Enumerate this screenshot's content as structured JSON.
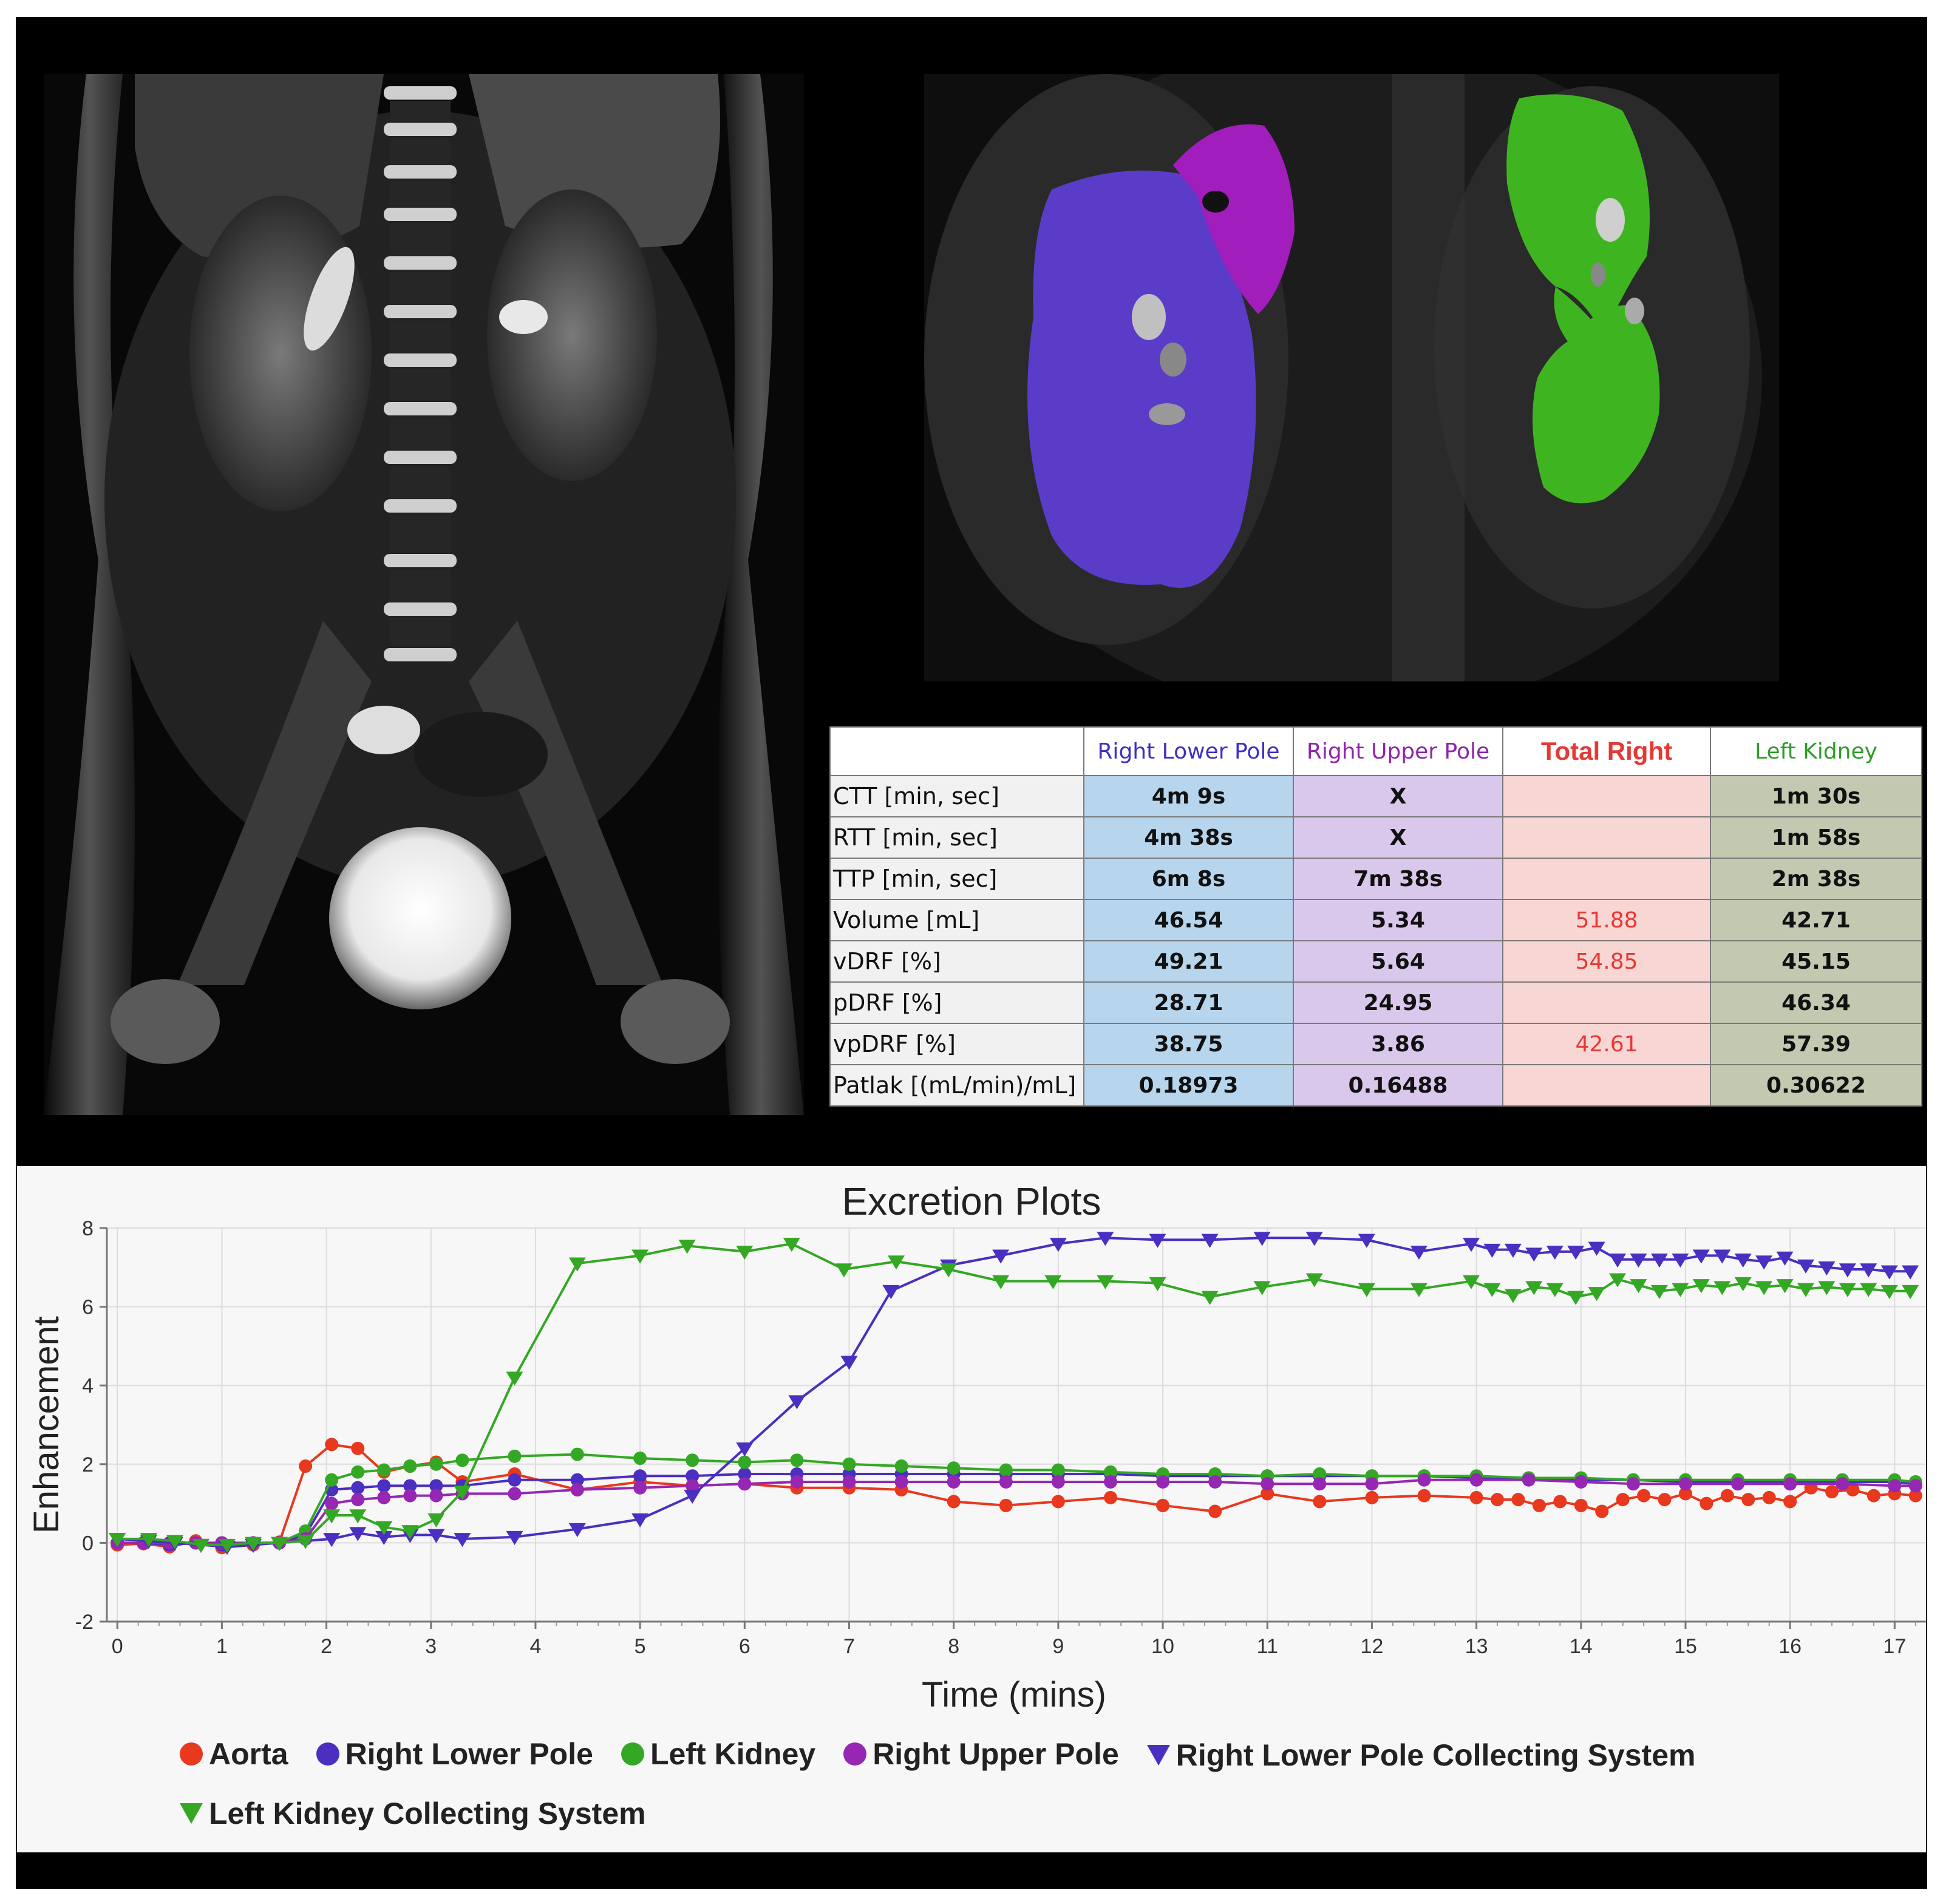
{
  "images": {
    "coronal": {
      "name": "coronal-mri-image"
    },
    "axial": {
      "name": "segmented-kidney-mri-image"
    }
  },
  "table": {
    "headers": [
      "",
      "Right Lower Pole",
      "Right Upper Pole",
      "Total Right",
      "Left Kidney"
    ],
    "header_colors": [
      "#000000",
      "#3c2fc4",
      "#8e24aa",
      "#e53935",
      "#2e9d28"
    ],
    "rows": [
      {
        "label": "CTT [min, sec]",
        "values": [
          "4m 9s",
          "X",
          "",
          "1m 30s"
        ]
      },
      {
        "label": "RTT [min, sec]",
        "values": [
          "4m 38s",
          "X",
          "",
          "1m 58s"
        ]
      },
      {
        "label": "TTP [min, sec]",
        "values": [
          "6m 8s",
          "7m 38s",
          "",
          "2m 38s"
        ]
      },
      {
        "label": "Volume [mL]",
        "values": [
          "46.54",
          "5.34",
          "51.88",
          "42.71"
        ]
      },
      {
        "label": "vDRF [%]",
        "values": [
          "49.21",
          "5.64",
          "54.85",
          "45.15"
        ]
      },
      {
        "label": "pDRF [%]",
        "values": [
          "28.71",
          "24.95",
          "",
          "46.34"
        ]
      },
      {
        "label": "vpDRF [%]",
        "values": [
          "38.75",
          "3.86",
          "42.61",
          "57.39"
        ]
      },
      {
        "label": "Patlak [(mL/min)/mL]",
        "values": [
          "0.18973",
          "0.16488",
          "",
          "0.30622"
        ]
      }
    ]
  },
  "chart_data": {
    "type": "line",
    "title": "Excretion Plots",
    "xlabel": "Time (mins)",
    "ylabel": "Enhancement",
    "xlim": [
      -0.1,
      17.3
    ],
    "ylim": [
      -2,
      8
    ],
    "xticks": [
      0,
      1,
      2,
      3,
      4,
      5,
      6,
      7,
      8,
      9,
      10,
      11,
      12,
      13,
      14,
      15,
      16,
      17
    ],
    "yticks": [
      -2,
      0,
      2,
      4,
      6,
      8
    ],
    "grid": true,
    "legend_position": "bottom",
    "series": [
      {
        "name": "Aorta",
        "marker": "circle",
        "color": "#e8381e",
        "x": [
          0,
          0.25,
          0.5,
          0.75,
          1,
          1.3,
          1.55,
          1.8,
          2.05,
          2.3,
          2.55,
          2.8,
          3.05,
          3.3,
          3.8,
          4.4,
          5,
          5.5,
          6,
          6.5,
          7,
          7.5,
          8,
          8.5,
          9,
          9.5,
          10,
          10.5,
          11,
          11.5,
          12,
          12.5,
          13,
          13.2,
          13.4,
          13.6,
          13.8,
          14,
          14.2,
          14.4,
          14.6,
          14.8,
          15,
          15.2,
          15.4,
          15.6,
          15.8,
          16,
          16.2,
          16.4,
          16.6,
          16.8,
          17,
          17.2
        ],
        "y": [
          -0.05,
          -0.02,
          -0.1,
          0.05,
          -0.12,
          -0.05,
          0.02,
          1.95,
          2.5,
          2.4,
          1.8,
          1.95,
          2.05,
          1.55,
          1.75,
          1.35,
          1.55,
          1.45,
          1.5,
          1.4,
          1.4,
          1.35,
          1.05,
          0.95,
          1.05,
          1.15,
          0.95,
          0.8,
          1.25,
          1.05,
          1.15,
          1.2,
          1.15,
          1.1,
          1.1,
          0.95,
          1.05,
          0.95,
          0.8,
          1.1,
          1.2,
          1.1,
          1.25,
          1.0,
          1.2,
          1.1,
          1.15,
          1.05,
          1.4,
          1.3,
          1.35,
          1.2,
          1.25,
          1.2
        ]
      },
      {
        "name": "Right Lower Pole",
        "marker": "circle",
        "color": "#4a2fc0",
        "x": [
          0,
          0.25,
          0.5,
          0.75,
          1,
          1.3,
          1.55,
          1.8,
          2.05,
          2.3,
          2.55,
          2.8,
          3.05,
          3.3,
          3.8,
          4.4,
          5,
          5.5,
          6,
          6.5,
          7,
          7.5,
          8,
          8.5,
          9,
          9.5,
          10,
          10.5,
          11,
          11.5,
          12,
          12.5,
          13,
          13.5,
          14,
          14.5,
          15,
          15.5,
          16,
          16.5,
          17,
          17.2
        ],
        "y": [
          0,
          0,
          -0.05,
          0,
          -0.05,
          0,
          0,
          0.2,
          1.35,
          1.4,
          1.45,
          1.45,
          1.45,
          1.45,
          1.6,
          1.6,
          1.7,
          1.7,
          1.75,
          1.75,
          1.75,
          1.75,
          1.75,
          1.75,
          1.75,
          1.75,
          1.7,
          1.7,
          1.7,
          1.7,
          1.7,
          1.7,
          1.65,
          1.65,
          1.6,
          1.6,
          1.55,
          1.55,
          1.55,
          1.55,
          1.55,
          1.5
        ]
      },
      {
        "name": "Left Kidney",
        "marker": "circle",
        "color": "#34a824",
        "x": [
          0,
          0.25,
          0.5,
          0.75,
          1,
          1.3,
          1.55,
          1.8,
          2.05,
          2.3,
          2.55,
          2.8,
          3.05,
          3.3,
          3.8,
          4.4,
          5,
          5.5,
          6,
          6.5,
          7,
          7.5,
          8,
          8.5,
          9,
          9.5,
          10,
          10.5,
          11,
          11.5,
          12,
          12.5,
          13,
          13.5,
          14,
          14.5,
          15,
          15.5,
          16,
          16.5,
          17,
          17.2
        ],
        "y": [
          0,
          0,
          0,
          0,
          0,
          0,
          0,
          0.3,
          1.6,
          1.8,
          1.85,
          1.95,
          2.0,
          2.1,
          2.2,
          2.25,
          2.15,
          2.1,
          2.05,
          2.1,
          2.0,
          1.95,
          1.9,
          1.85,
          1.85,
          1.8,
          1.75,
          1.75,
          1.7,
          1.75,
          1.7,
          1.7,
          1.7,
          1.65,
          1.65,
          1.6,
          1.6,
          1.6,
          1.6,
          1.6,
          1.6,
          1.55
        ]
      },
      {
        "name": "Right Upper Pole",
        "marker": "circle",
        "color": "#9627b3",
        "x": [
          0,
          0.25,
          0.5,
          0.75,
          1,
          1.3,
          1.55,
          1.8,
          2.05,
          2.3,
          2.55,
          2.8,
          3.05,
          3.3,
          3.8,
          4.4,
          5,
          5.5,
          6,
          6.5,
          7,
          7.5,
          8,
          8.5,
          9,
          9.5,
          10,
          10.5,
          11,
          11.5,
          12,
          12.5,
          13,
          13.5,
          14,
          14.5,
          15,
          15.5,
          16,
          16.5,
          17,
          17.2
        ],
        "y": [
          0,
          0,
          0,
          0,
          0,
          0,
          0,
          0.1,
          1.0,
          1.1,
          1.15,
          1.2,
          1.2,
          1.25,
          1.25,
          1.35,
          1.4,
          1.45,
          1.5,
          1.55,
          1.55,
          1.55,
          1.55,
          1.55,
          1.55,
          1.55,
          1.55,
          1.55,
          1.5,
          1.5,
          1.5,
          1.6,
          1.6,
          1.6,
          1.55,
          1.5,
          1.5,
          1.5,
          1.5,
          1.5,
          1.45,
          1.45
        ]
      },
      {
        "name": "Right Lower Pole Collecting System",
        "marker": "triangle-down",
        "color": "#4a2fc0",
        "x": [
          0,
          0.3,
          0.55,
          0.8,
          1.05,
          1.3,
          1.55,
          2.05,
          2.3,
          2.55,
          2.8,
          3.05,
          3.3,
          3.8,
          4.4,
          5,
          5.5,
          6,
          6.5,
          7,
          7.4,
          7.95,
          8.45,
          9,
          9.45,
          9.95,
          10.45,
          10.95,
          11.45,
          11.95,
          12.45,
          12.95,
          13.15,
          13.35,
          13.55,
          13.75,
          13.95,
          14.15,
          14.35,
          14.55,
          14.75,
          14.95,
          15.15,
          15.35,
          15.55,
          15.75,
          15.95,
          16.15,
          16.35,
          16.55,
          16.75,
          16.95,
          17.15
        ],
        "y": [
          0.1,
          0.05,
          0.0,
          -0.05,
          -0.1,
          -0.05,
          0.0,
          0.1,
          0.25,
          0.15,
          0.2,
          0.2,
          0.1,
          0.15,
          0.35,
          0.6,
          1.2,
          2.4,
          3.6,
          4.6,
          6.4,
          7.05,
          7.3,
          7.6,
          7.75,
          7.7,
          7.7,
          7.75,
          7.75,
          7.7,
          7.4,
          7.6,
          7.45,
          7.45,
          7.35,
          7.4,
          7.4,
          7.5,
          7.2,
          7.2,
          7.2,
          7.2,
          7.3,
          7.3,
          7.2,
          7.15,
          7.25,
          7.05,
          7.0,
          6.95,
          6.95,
          6.9,
          6.9
        ]
      },
      {
        "name": "Left Kidney Collecting System",
        "marker": "triangle-down",
        "color": "#34a824",
        "x": [
          0,
          0.3,
          0.55,
          0.8,
          1.05,
          1.3,
          1.55,
          1.8,
          2.05,
          2.3,
          2.55,
          2.8,
          3.05,
          3.3,
          3.8,
          4.4,
          5,
          5.45,
          6,
          6.45,
          6.95,
          7.45,
          7.95,
          8.45,
          8.95,
          9.45,
          9.95,
          10.45,
          10.95,
          11.45,
          11.95,
          12.45,
          12.95,
          13.15,
          13.35,
          13.55,
          13.75,
          13.95,
          14.15,
          14.35,
          14.55,
          14.75,
          14.95,
          15.15,
          15.35,
          15.55,
          15.75,
          15.95,
          16.15,
          16.35,
          16.55,
          16.75,
          16.95,
          17.15
        ],
        "y": [
          0.1,
          0.1,
          0.05,
          -0.05,
          -0.05,
          0.0,
          0.0,
          0.05,
          0.7,
          0.7,
          0.4,
          0.3,
          0.6,
          1.3,
          4.2,
          7.1,
          7.3,
          7.55,
          7.4,
          7.6,
          6.95,
          7.15,
          6.95,
          6.65,
          6.65,
          6.65,
          6.6,
          6.25,
          6.5,
          6.7,
          6.45,
          6.45,
          6.65,
          6.45,
          6.3,
          6.5,
          6.45,
          6.25,
          6.35,
          6.7,
          6.55,
          6.4,
          6.45,
          6.55,
          6.5,
          6.6,
          6.5,
          6.55,
          6.45,
          6.5,
          6.45,
          6.45,
          6.4,
          6.4
        ]
      }
    ]
  }
}
